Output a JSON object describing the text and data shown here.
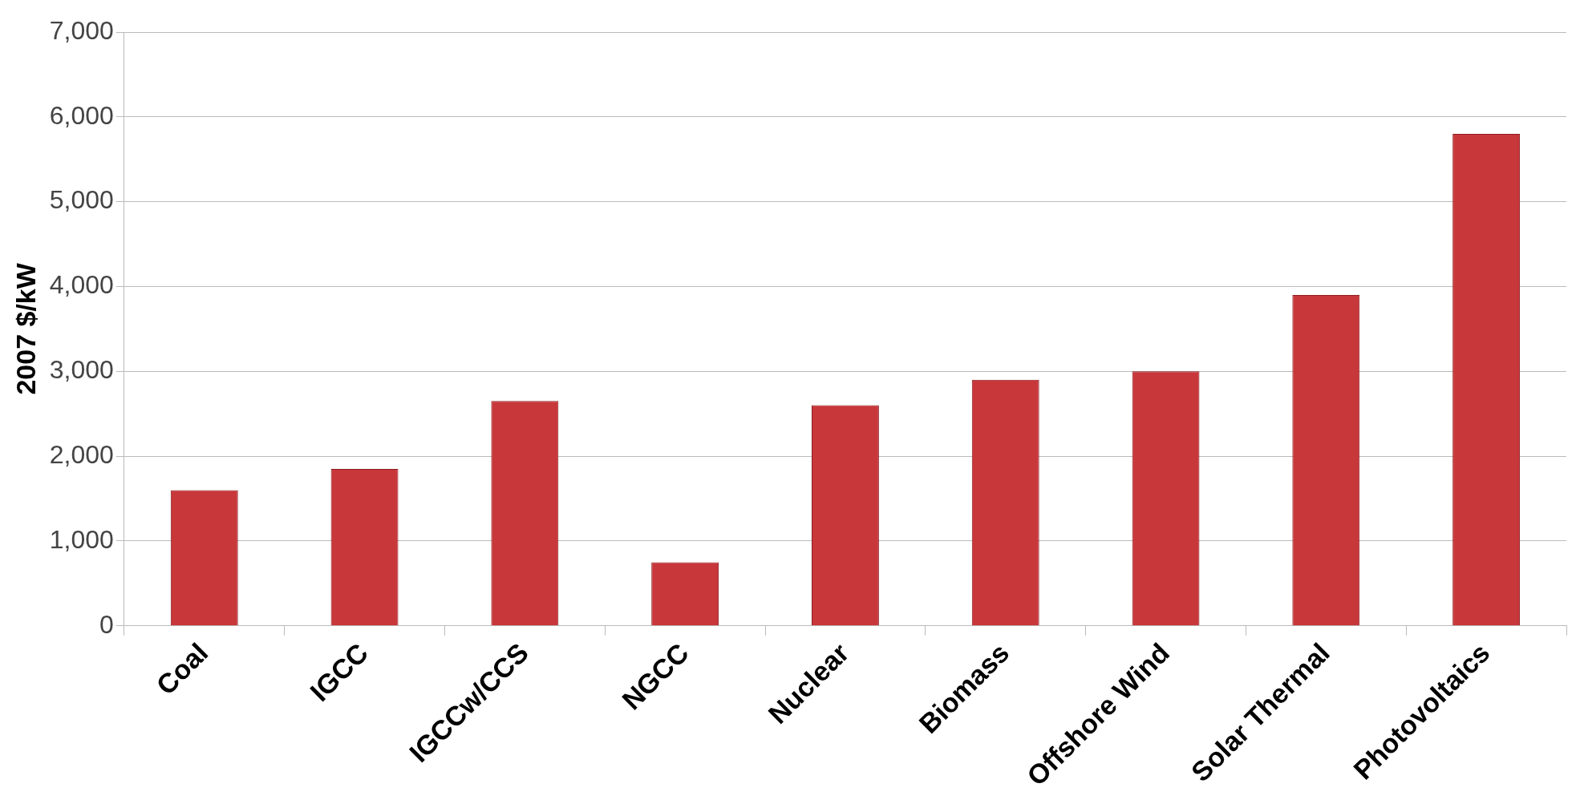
{
  "chart_data": {
    "type": "bar",
    "ylabel": "2007 $/kW",
    "categories": [
      "Coal",
      "IGCC",
      "IGCCw/CCS",
      "NGCC",
      "Nuclear",
      "Biomass",
      "Offshore Wind",
      "Solar Thermal",
      "Photovoltaics"
    ],
    "values": [
      1600,
      1850,
      2650,
      750,
      2600,
      2900,
      3000,
      3900,
      5800
    ],
    "color": "#c8373a",
    "ylim": [
      0,
      7000
    ],
    "yticks": [
      {
        "value": 0,
        "label": "0"
      },
      {
        "value": 1000,
        "label": "1,000"
      },
      {
        "value": 2000,
        "label": "2,000"
      },
      {
        "value": 3000,
        "label": "3,000"
      },
      {
        "value": 4000,
        "label": "4,000"
      },
      {
        "value": 5000,
        "label": "5,000"
      },
      {
        "value": 6000,
        "label": "6,000"
      },
      {
        "value": 7000,
        "label": "7,000"
      }
    ],
    "grid": "y",
    "legend": false
  }
}
